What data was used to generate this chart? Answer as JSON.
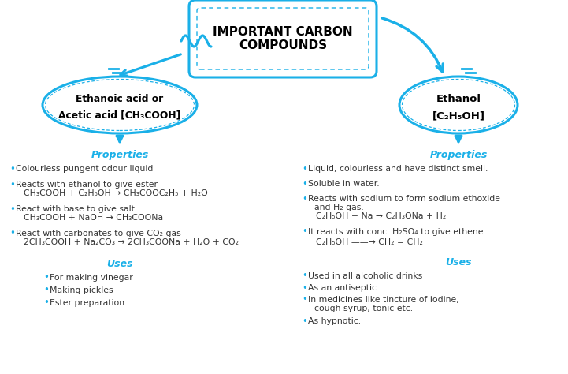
{
  "bg_color": "#ffffff",
  "blue": "#1ab0e8",
  "title": "IMPORTANT CARBON\nCOMPOUNDS",
  "props_label": "Properties",
  "uses_label": "Uses",
  "left_props": [
    [
      "Colourless pungent odour liquid",
      true,
      null
    ],
    [
      "Reacts with ethanol to give ester",
      true,
      "CH₃COOH + C₂H₅OH → CH₃COOC₂H₅ + H₂O"
    ],
    [
      "React with base to give salt.",
      true,
      "CH₃COOH + NaOH → CH₃COONa"
    ],
    [
      "React with carbonates to give CO₂ gas",
      true,
      "2CH₃COOH + Na₂CO₃ → 2CH₃COONa + H₂O + CO₂"
    ]
  ],
  "left_uses": [
    "For making vinegar",
    "Making pickles",
    "Ester preparation"
  ],
  "right_props": [
    [
      "Liquid, colourless and have distinct smell.",
      true,
      null
    ],
    [
      "Soluble in water.",
      true,
      null
    ],
    [
      "Reacts with sodium to form sodium ethoxide",
      true,
      "and H₂ gas.\n    C₂H₅OH + Na → C₂H₃ONa + H₂"
    ],
    [
      "It reacts with conc. H₂SO₄ to give ethene.",
      true,
      "C₂H₅OH ——Conc.H₂SO₄→ CH₂ = CH₂"
    ]
  ],
  "right_uses": [
    "Used in all alcoholic drinks",
    "As an antiseptic.",
    "In medicines like tincture of iodine,\ncough syrup, tonic etc.",
    "As hypnotic."
  ]
}
